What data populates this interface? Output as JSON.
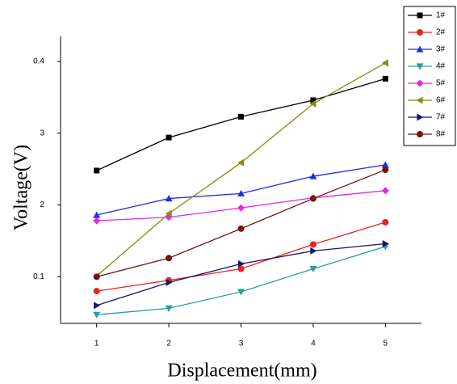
{
  "chart_data": {
    "type": "line",
    "xlabel": "Displacement(mm)",
    "ylabel": "Voltage(V)",
    "x": [
      1,
      2,
      3,
      4,
      5
    ],
    "xlim": [
      0.5,
      5.5
    ],
    "xticks": [
      1,
      2,
      3,
      4,
      5
    ],
    "ylim": [
      0.035,
      0.435
    ],
    "yticks": [
      0.1,
      {
        "value": 0.2,
        "label": "2"
      },
      {
        "value": 0.3,
        "label": "3"
      },
      0.4
    ],
    "legend": "upper-right",
    "series": [
      {
        "name": "1#",
        "color": "#000000",
        "marker": "square",
        "values": [
          0.248,
          0.294,
          0.323,
          0.346,
          0.376
        ]
      },
      {
        "name": "2#",
        "color": "#e8231f",
        "marker": "circle",
        "values": [
          0.08,
          0.095,
          0.111,
          0.145,
          0.176
        ]
      },
      {
        "name": "3#",
        "color": "#1f2fe0",
        "marker": "triangle-up",
        "values": [
          0.186,
          0.209,
          0.216,
          0.24,
          0.256
        ]
      },
      {
        "name": "4#",
        "color": "#2a9e9e",
        "marker": "triangle-down",
        "values": [
          0.047,
          0.056,
          0.079,
          0.111,
          0.142
        ]
      },
      {
        "name": "5#",
        "color": "#e826e8",
        "marker": "diamond",
        "values": [
          0.178,
          0.183,
          0.196,
          0.21,
          0.22
        ]
      },
      {
        "name": "6#",
        "color": "#8a8a10",
        "marker": "triangle-left",
        "values": [
          0.101,
          0.188,
          0.259,
          0.341,
          0.398
        ]
      },
      {
        "name": "7#",
        "color": "#14146e",
        "marker": "triangle-right",
        "values": [
          0.06,
          0.092,
          0.118,
          0.136,
          0.146
        ]
      },
      {
        "name": "8#",
        "color": "#7a1010",
        "marker": "circle",
        "values": [
          0.1,
          0.126,
          0.167,
          0.209,
          0.249
        ]
      }
    ]
  }
}
